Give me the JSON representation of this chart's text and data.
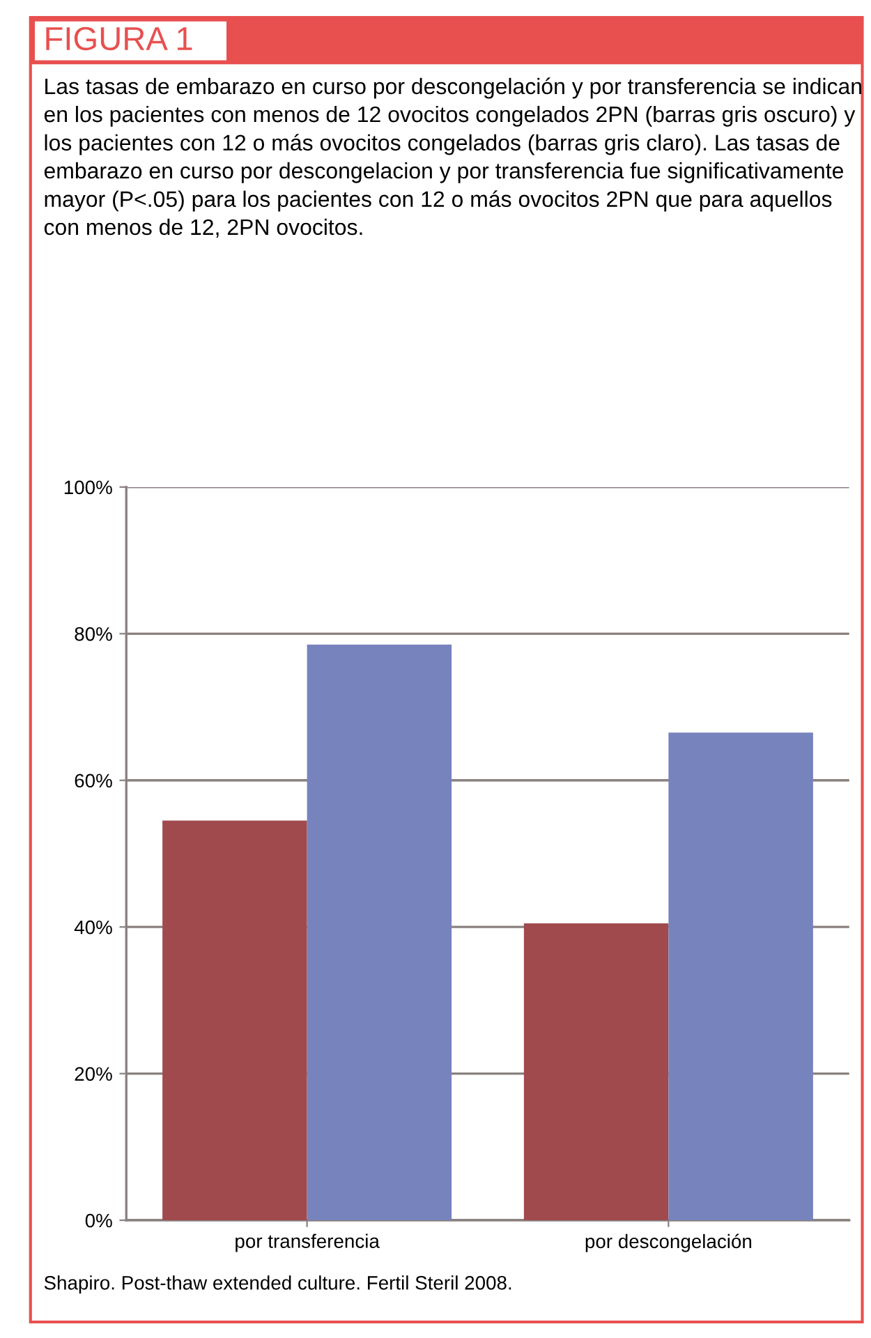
{
  "chart_data": {
    "type": "bar",
    "title": "FIGURA 1",
    "subtitle": "Las tasas de embarazo en curso por descongelación y por transferencia se indican en los pacientes con menos de 12 ovocitos congelados 2PN (barras gris oscuro) y los pacientes con 12 o más ovocitos congelados (barras gris claro). Las tasas de embarazo en curso por descongelacion y por transferencia fue significativamente mayor (P<.05) para los pacientes con 12 o más ovocitos 2PN que para aquellos con menos de 12, 2PN ovocitos.",
    "categories": [
      "por transferencia",
      "por descongelación"
    ],
    "series": [
      {
        "color": "#a04a4e",
        "values": [
          54.5,
          40.5
        ]
      },
      {
        "color": "#7783bd",
        "values": [
          78.5,
          66.5
        ]
      }
    ],
    "ylim": [
      0,
      100
    ],
    "yticks": [
      {
        "value": 0,
        "label": "0%"
      },
      {
        "value": 20,
        "label": "20%"
      },
      {
        "value": 40,
        "label": "40%"
      },
      {
        "value": 60,
        "label": "60%"
      },
      {
        "value": 80,
        "label": "80%"
      },
      {
        "value": 100,
        "label": "100%"
      }
    ],
    "grid": "y",
    "annotations": [
      "Shapiro. Post-thaw extended culture. Fertil Steril 2008."
    ]
  }
}
